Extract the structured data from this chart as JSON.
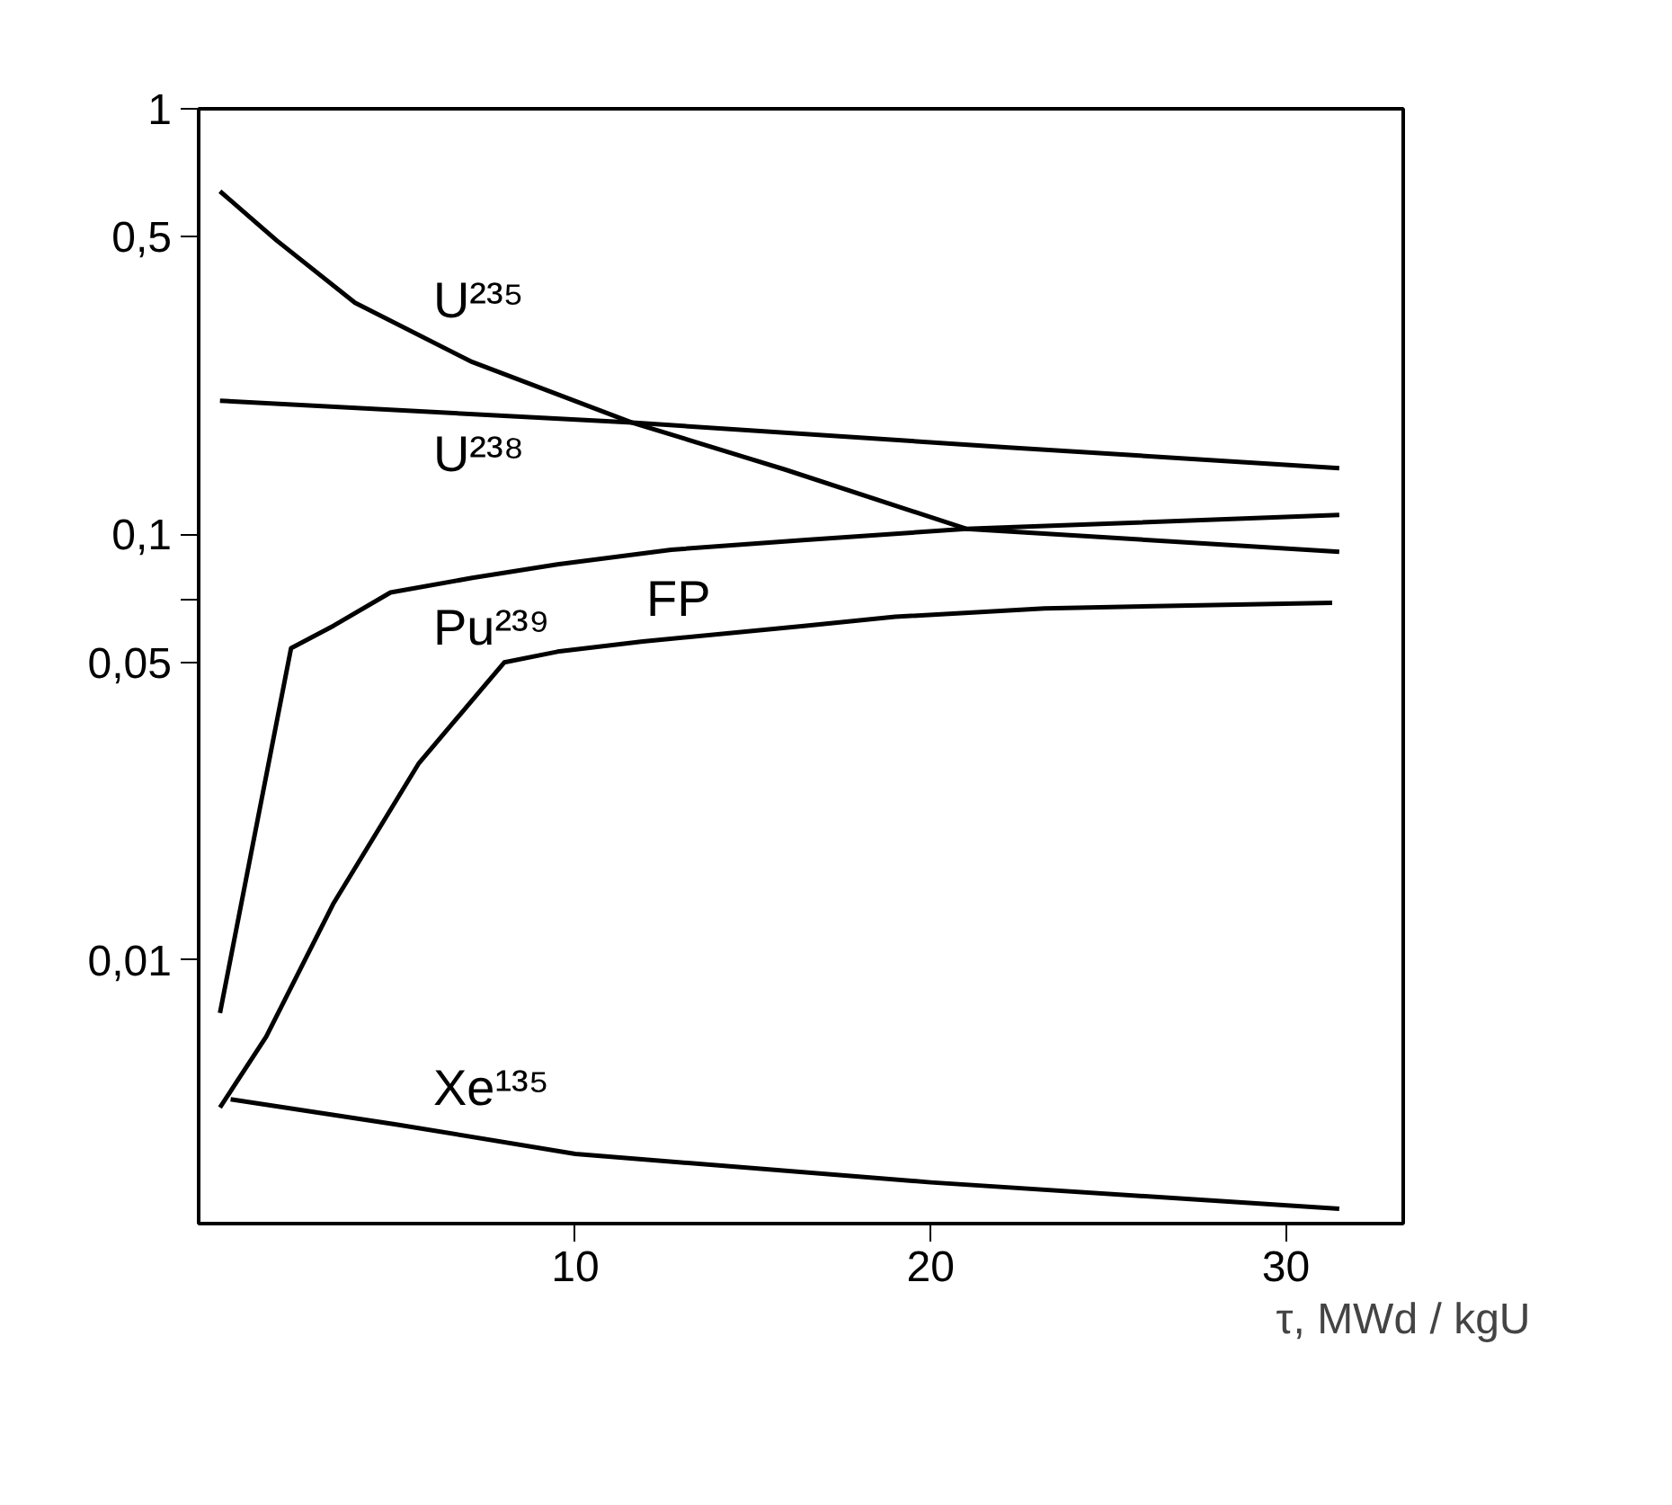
{
  "chart_data": {
    "type": "line",
    "xlabel": "τ, MWd / kgU",
    "log": "y",
    "grid": false,
    "line_style": "solid",
    "xlim": [
      -0.6,
      33.3
    ],
    "xticks": [
      10,
      20,
      30
    ],
    "ylim": [
      0.0024,
      1
    ],
    "yticks": [
      {
        "value": 1,
        "label": "1"
      },
      {
        "value": 0.5,
        "label": "0,5"
      },
      {
        "value": 0.1,
        "label": "0,1"
      },
      {
        "value": 0.07,
        "label": null
      },
      {
        "value": 0.05,
        "label": "0,05"
      },
      {
        "value": 0.01,
        "label": "0,01"
      }
    ],
    "series": [
      {
        "name": "U²³⁵",
        "color": "#000000",
        "x": [
          0,
          1.6,
          3.8,
          7.1,
          11.6,
          15.9,
          21,
          31.5
        ],
        "values": [
          0.64,
          0.49,
          0.35,
          0.254,
          0.183,
          0.142,
          0.103,
          0.091
        ]
      },
      {
        "name": "U²³⁸",
        "color": "#000000",
        "x": [
          0,
          11.6,
          22.2,
          31.5
        ],
        "values": [
          0.206,
          0.183,
          0.16,
          0.143
        ]
      },
      {
        "name": "Pu²³⁹",
        "color": "#000000",
        "x": [
          0,
          2,
          3.2,
          4.8,
          7.1,
          9.5,
          12.7,
          16.5,
          21,
          31.5
        ],
        "values": [
          0.0075,
          0.054,
          0.061,
          0.073,
          0.079,
          0.085,
          0.092,
          0.097,
          0.103,
          0.111
        ]
      },
      {
        "name": "FP",
        "color": "#000000",
        "x": [
          0,
          1.3,
          3.2,
          5.6,
          8,
          9.5,
          11.9,
          16.5,
          19,
          23.2,
          31.3
        ],
        "values": [
          0.0045,
          0.0066,
          0.0136,
          0.029,
          0.05,
          0.053,
          0.056,
          0.061,
          0.064,
          0.067,
          0.069
        ]
      },
      {
        "name": "Xe¹³⁵",
        "color": "#000000",
        "x": [
          0.3,
          5,
          10,
          20,
          31.5
        ],
        "values": [
          0.0047,
          0.0041,
          0.0035,
          0.003,
          0.0026
        ]
      }
    ]
  }
}
